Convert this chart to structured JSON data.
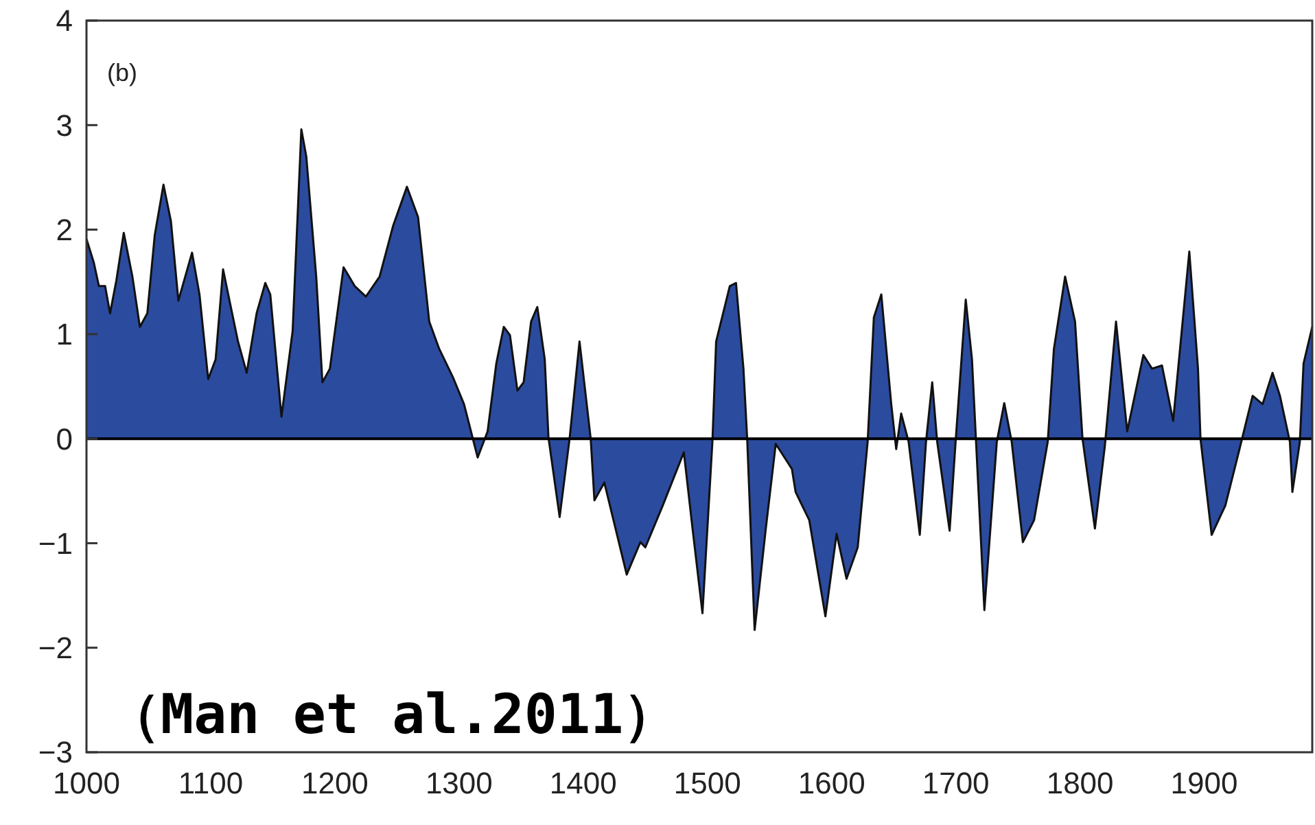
{
  "chart_data": {
    "type": "area",
    "x": [
      1000,
      1006,
      1010,
      1015,
      1019,
      1024,
      1030,
      1037,
      1043,
      1049,
      1055,
      1062,
      1068,
      1074,
      1085,
      1091,
      1098,
      1104,
      1110,
      1115,
      1122,
      1129,
      1137,
      1144,
      1148,
      1157,
      1166,
      1173,
      1177,
      1185,
      1190,
      1196,
      1207,
      1216,
      1225,
      1236,
      1247,
      1258,
      1267,
      1276,
      1284,
      1295,
      1304,
      1315,
      1323,
      1330,
      1336,
      1341,
      1347,
      1352,
      1358,
      1363,
      1369,
      1372,
      1381,
      1389,
      1397,
      1406,
      1409,
      1417,
      1435,
      1446,
      1450,
      1464,
      1481,
      1488,
      1496,
      1504,
      1507,
      1518,
      1523,
      1529,
      1532,
      1538,
      1547,
      1555,
      1568,
      1571,
      1582,
      1595,
      1604,
      1612,
      1621,
      1629,
      1634,
      1640,
      1648,
      1652,
      1656,
      1662,
      1671,
      1676,
      1681,
      1685,
      1695,
      1700,
      1708,
      1713,
      1723,
      1733,
      1739,
      1745,
      1754,
      1763,
      1774,
      1779,
      1788,
      1796,
      1802,
      1812,
      1820,
      1829,
      1838,
      1851,
      1858,
      1866,
      1875,
      1888,
      1895,
      1897,
      1906,
      1917,
      1928,
      1939,
      1947,
      1955,
      1961,
      1969,
      1971,
      1977,
      1980,
      1987
    ],
    "series": [
      {
        "color": "#2b4b9e",
        "values": [
          1.91,
          1.68,
          1.46,
          1.46,
          1.2,
          1.51,
          1.97,
          1.55,
          1.07,
          1.2,
          1.95,
          2.43,
          2.08,
          1.32,
          1.78,
          1.38,
          0.57,
          0.76,
          1.62,
          1.33,
          0.93,
          0.63,
          1.2,
          1.49,
          1.38,
          0.21,
          1.03,
          2.96,
          2.7,
          1.55,
          0.54,
          0.67,
          1.64,
          1.46,
          1.36,
          1.55,
          2.04,
          2.41,
          2.12,
          1.12,
          0.86,
          0.59,
          0.33,
          -0.18,
          0.07,
          0.72,
          1.07,
          0.99,
          0.46,
          0.54,
          1.12,
          1.26,
          0.76,
          0.01,
          -0.75,
          0,
          0.93,
          0,
          -0.59,
          -0.42,
          -1.3,
          -0.99,
          -1.04,
          -0.64,
          -0.13,
          -0.86,
          -1.67,
          -0.03,
          0.93,
          1.46,
          1.49,
          0.67,
          0,
          -1.83,
          -0.86,
          -0.05,
          -0.29,
          -0.51,
          -0.78,
          -1.7,
          -0.91,
          -1.34,
          -1.04,
          -0.03,
          1.16,
          1.38,
          0.33,
          -0.1,
          0.24,
          -0.03,
          -0.92,
          -0.03,
          0.54,
          -0.03,
          -0.88,
          0,
          1.33,
          0.76,
          -1.64,
          -0.03,
          0.34,
          -0.03,
          -0.99,
          -0.78,
          -0.03,
          0.86,
          1.55,
          1.12,
          0,
          -0.86,
          -0.07,
          1.12,
          0.07,
          0.8,
          0.67,
          0.7,
          0.17,
          1.79,
          0.67,
          0,
          -0.92,
          -0.64,
          -0.12,
          0.41,
          0.33,
          0.63,
          0.41,
          -0.03,
          -0.51,
          -0.03,
          0.72,
          1.07
        ]
      }
    ],
    "xlim": [
      1000,
      1987
    ],
    "xticks": [
      1000,
      1100,
      1200,
      1300,
      1400,
      1500,
      1600,
      1700,
      1800,
      1900
    ],
    "ylim": [
      -3,
      4
    ],
    "yticks": [
      -3,
      -2,
      -1,
      0,
      1,
      2,
      3,
      4
    ],
    "ref_lines": [
      {
        "axis": "y",
        "value": 0,
        "color": "#000000"
      }
    ],
    "annotations": [
      "(b)",
      "（Man et al.2011）"
    ],
    "grid": false
  }
}
